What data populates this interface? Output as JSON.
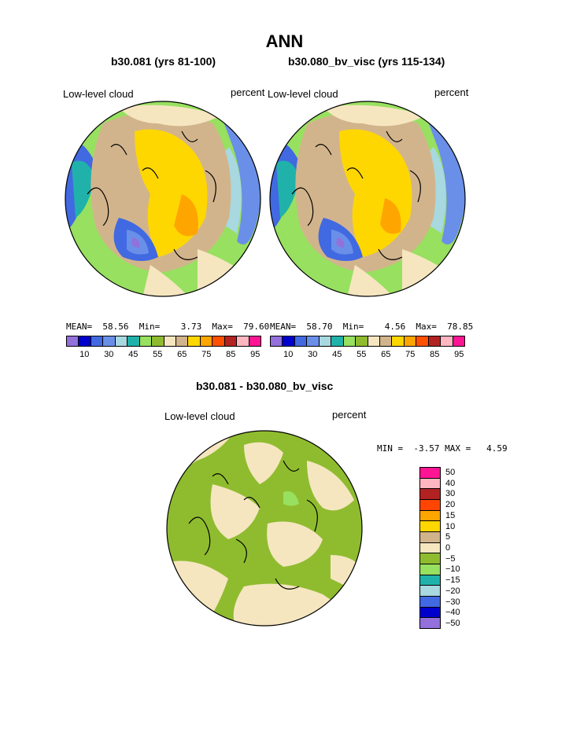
{
  "title": "ANN",
  "left_panel": {
    "subtitle": "b30.081 (yrs 81-100)",
    "field": "Low-level cloud",
    "units": "percent",
    "stats": "MEAN=  58.56  Min=    3.73  Max=  79.60"
  },
  "right_panel": {
    "subtitle": "b30.080_bv_visc (yrs 115-134)",
    "field": "Low-level cloud",
    "units": "percent",
    "stats": "MEAN=  58.70  Min=    4.56  Max=  78.85"
  },
  "diff_panel": {
    "subtitle": "b30.081 - b30.080_bv_visc",
    "field": "Low-level cloud",
    "units": "percent",
    "stats": "MIN =  -3.57 MAX =   4.59"
  },
  "abs_colorbar": {
    "colors": [
      "#9370DB",
      "#0000CD",
      "#4169E1",
      "#6A8FE8",
      "#A8D8E0",
      "#20B2AA",
      "#98E060",
      "#8FBC2F",
      "#F5E6C0",
      "#D2B48C",
      "#FFD700",
      "#FFA500",
      "#FF5000",
      "#B22222",
      "#FFB6C1",
      "#FF1493"
    ],
    "tick_labels": [
      "10",
      "30",
      "45",
      "55",
      "65",
      "75",
      "85",
      "95"
    ]
  },
  "diff_colorbar": {
    "colors": [
      "#FF1493",
      "#FFB6C1",
      "#B22222",
      "#FF4500",
      "#FFA500",
      "#FFD700",
      "#D2B48C",
      "#F5E6C0",
      "#8FBC2F",
      "#98E060",
      "#20B2AA",
      "#A8D8E0",
      "#4169E1",
      "#0000CD",
      "#9370DB"
    ],
    "tick_labels": [
      "50",
      "40",
      "30",
      "20",
      "15",
      "10",
      "5",
      "0",
      "−5",
      "−10",
      "−15",
      "−20",
      "−30",
      "−40",
      "−50"
    ]
  },
  "map_colors": {
    "ocean_default": "#8FBC2F",
    "land_tan": "#D2B48C",
    "beige": "#F5E6C0",
    "yellow": "#FFD700",
    "orange": "#FFA500",
    "light_green": "#98E060",
    "teal": "#20B2AA",
    "light_blue": "#A8D8E0",
    "blue": "#4169E1",
    "mid_blue": "#6A8FE8",
    "purple": "#9370DB"
  }
}
